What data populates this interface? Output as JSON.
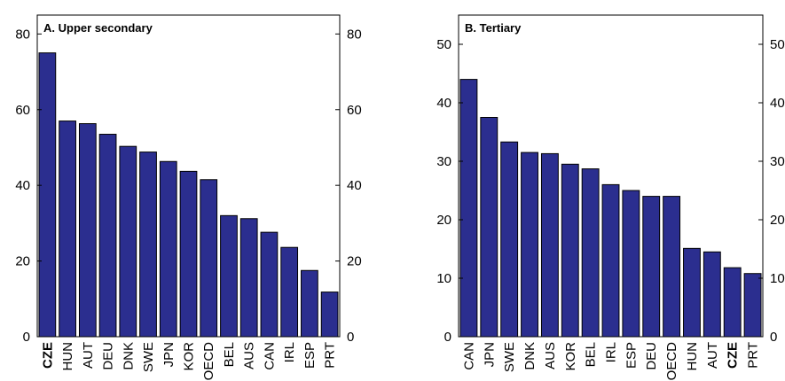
{
  "chart_data": [
    {
      "type": "bar",
      "title": "A. Upper secondary",
      "categories": [
        "CZE",
        "HUN",
        "AUT",
        "DEU",
        "DNK",
        "SWE",
        "JPN",
        "KOR",
        "OECD",
        "BEL",
        "AUS",
        "CAN",
        "IRL",
        "ESP",
        "PRT"
      ],
      "values": [
        75,
        57,
        56.3,
        53.5,
        50.3,
        48.8,
        46.3,
        43.7,
        41.5,
        32,
        31.2,
        27.6,
        23.6,
        17.5,
        11.8
      ],
      "color": "#2b2e8f",
      "highlight": "CZE",
      "ylim": [
        0,
        85
      ],
      "yticks": [
        0,
        20,
        40,
        60,
        80
      ],
      "y2lim": [
        0,
        85
      ],
      "y2ticks": [
        0,
        20,
        40,
        60,
        80
      ]
    },
    {
      "type": "bar",
      "title": "B. Tertiary",
      "categories": [
        "CAN",
        "JPN",
        "SWE",
        "DNK",
        "AUS",
        "KOR",
        "BEL",
        "IRL",
        "ESP",
        "DEU",
        "OECD",
        "HUN",
        "AUT",
        "CZE",
        "PRT"
      ],
      "values": [
        44,
        37.5,
        33.3,
        31.5,
        31.3,
        29.5,
        28.7,
        26,
        25,
        24,
        24,
        15.1,
        14.5,
        11.8,
        10.8
      ],
      "color": "#2b2e8f",
      "highlight": "CZE",
      "ylim": [
        0,
        55
      ],
      "yticks": [
        0,
        10,
        20,
        30,
        40,
        50
      ],
      "y2lim": [
        0,
        55
      ],
      "y2ticks": [
        0,
        10,
        20,
        30,
        40,
        50
      ]
    }
  ]
}
